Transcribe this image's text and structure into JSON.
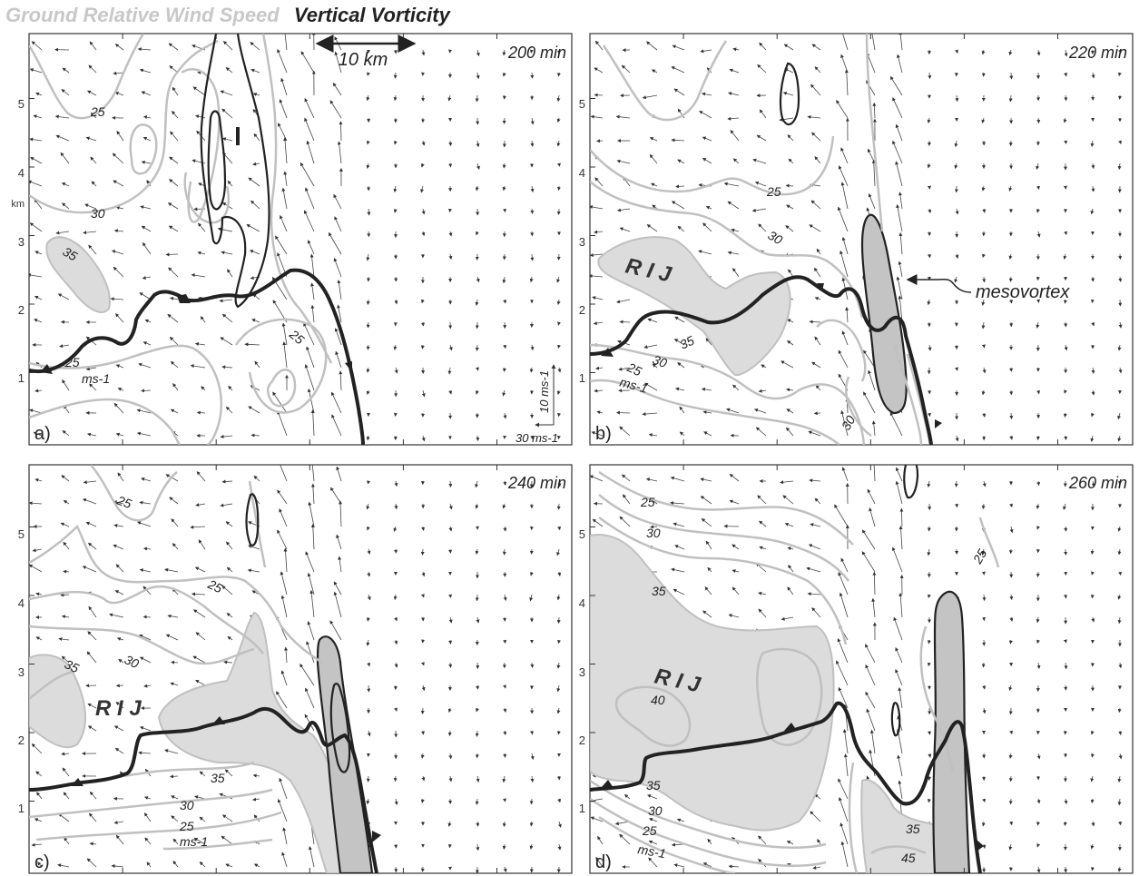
{
  "header": {
    "wind_label": "Ground Relative Wind Speed",
    "vort_label": "Vertical Vorticity"
  },
  "colors": {
    "wind_contour": "#c0c0c0",
    "shade_light": "#dcdcdc",
    "shade_dark": "#c4c4c4",
    "vorticity": "#222222",
    "cold_pool": "#222222",
    "vectors": "#333333"
  },
  "scale_bar_label": "10 km",
  "axis_unit": "km",
  "y_ticks": [
    "1",
    "2",
    "3",
    "4",
    "5"
  ],
  "vector_ref": {
    "vertical": "10 ms-1",
    "horizontal": "30 ms-1"
  },
  "annotation_mesovortex": "mesovortex",
  "panels": [
    {
      "letter": "a)",
      "time": "200 min",
      "contour_labels": [
        "25",
        "30",
        "35",
        "25",
        "25",
        "ms-1"
      ]
    },
    {
      "letter": "b)",
      "time": "220 min",
      "rij": "R I J",
      "contour_labels": [
        "25",
        "30",
        "35",
        "30",
        "25",
        "ms-1",
        "30"
      ]
    },
    {
      "letter": "c)",
      "time": "240 min",
      "rij": "R I J",
      "contour_labels": [
        "25",
        "25",
        "30",
        "35",
        "35",
        "30",
        "25",
        "ms-1"
      ]
    },
    {
      "letter": "d)",
      "time": "260 min",
      "rij": "R I J",
      "contour_labels": [
        "25",
        "30",
        "35",
        "40",
        "35",
        "30",
        "25",
        "ms-1",
        "35",
        "45",
        "25"
      ]
    }
  ]
}
